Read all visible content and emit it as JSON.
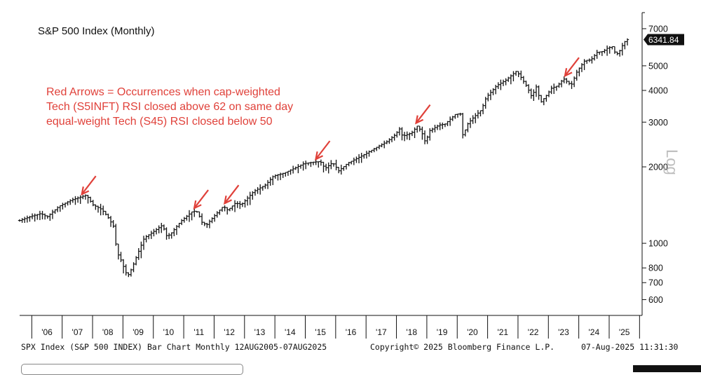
{
  "title": "S&P 500 Index (Monthly)",
  "annotation": [
    "Red Arrows = Occurrences when cap-weighted",
    "Tech (S5INFT) RSI closed above 62 on same day",
    "equal-weight Tech (S45) RSI closed below 50"
  ],
  "footer": {
    "left": "SPX Index (S&P 500 INDEX) Bar Chart  Monthly 12AUG2005-07AUG2025",
    "center": "Copyright© 2025 Bloomberg Finance L.P.",
    "right": "07-Aug-2025 11:31:30"
  },
  "colors": {
    "bars": "#111111",
    "arrows": "#e0413a",
    "annotation": "#e0413a",
    "last_price_tag": "#111111"
  },
  "chart_data": {
    "type": "bar",
    "subtype": "ohlc",
    "y_scale": "log",
    "y_scale_label": "Log",
    "ylim": [
      520,
      7600
    ],
    "y_ticks": [
      600,
      700,
      800,
      1000,
      2000,
      3000,
      4000,
      5000,
      7000
    ],
    "y_tick_labels": [
      "600",
      "700",
      "800",
      "1000",
      "2000",
      "3000",
      "4000",
      "5000",
      "7000"
    ],
    "x_range": [
      2005.6,
      2025.6
    ],
    "x_ticks": [
      "'06",
      "'07",
      "'08",
      "'09",
      "'10",
      "'11",
      "'12",
      "'13",
      "'14",
      "'15",
      "'16",
      "'17",
      "'18",
      "'19",
      "'20",
      "'21",
      "'22",
      "'23",
      "'24",
      "'25"
    ],
    "last_price": "6341.84",
    "grid": false,
    "series": [
      {
        "approx_monthly_close": [
          [
            2005.6,
            1230
          ],
          [
            2006.0,
            1280
          ],
          [
            2006.3,
            1310
          ],
          [
            2006.5,
            1270
          ],
          [
            2006.9,
            1400
          ],
          [
            2007.3,
            1480
          ],
          [
            2007.6,
            1520
          ],
          [
            2007.8,
            1550
          ],
          [
            2008.0,
            1420
          ],
          [
            2008.3,
            1360
          ],
          [
            2008.5,
            1270
          ],
          [
            2008.7,
            1160
          ],
          [
            2008.8,
            920
          ],
          [
            2008.9,
            880
          ],
          [
            2009.0,
            820
          ],
          [
            2009.15,
            740
          ],
          [
            2009.3,
            800
          ],
          [
            2009.5,
            920
          ],
          [
            2009.7,
            1050
          ],
          [
            2010.0,
            1110
          ],
          [
            2010.3,
            1180
          ],
          [
            2010.45,
            1060
          ],
          [
            2010.6,
            1100
          ],
          [
            2010.9,
            1220
          ],
          [
            2011.3,
            1340
          ],
          [
            2011.45,
            1330
          ],
          [
            2011.6,
            1210
          ],
          [
            2011.75,
            1180
          ],
          [
            2011.95,
            1260
          ],
          [
            2012.3,
            1400
          ],
          [
            2012.45,
            1350
          ],
          [
            2012.7,
            1440
          ],
          [
            2012.9,
            1420
          ],
          [
            2013.3,
            1600
          ],
          [
            2013.7,
            1700
          ],
          [
            2013.95,
            1840
          ],
          [
            2014.3,
            1890
          ],
          [
            2014.7,
            1990
          ],
          [
            2014.95,
            2060
          ],
          [
            2015.3,
            2090
          ],
          [
            2015.5,
            2100
          ],
          [
            2015.65,
            1970
          ],
          [
            2015.9,
            2080
          ],
          [
            2016.1,
            1930
          ],
          [
            2016.4,
            2070
          ],
          [
            2016.7,
            2160
          ],
          [
            2016.95,
            2240
          ],
          [
            2017.3,
            2370
          ],
          [
            2017.7,
            2520
          ],
          [
            2017.95,
            2670
          ],
          [
            2018.1,
            2820
          ],
          [
            2018.2,
            2640
          ],
          [
            2018.5,
            2720
          ],
          [
            2018.7,
            2910
          ],
          [
            2018.85,
            2700
          ],
          [
            2018.95,
            2500
          ],
          [
            2019.1,
            2780
          ],
          [
            2019.4,
            2920
          ],
          [
            2019.6,
            2950
          ],
          [
            2019.95,
            3230
          ],
          [
            2020.1,
            3230
          ],
          [
            2020.2,
            2580
          ],
          [
            2020.3,
            2910
          ],
          [
            2020.5,
            3100
          ],
          [
            2020.8,
            3360
          ],
          [
            2020.95,
            3750
          ],
          [
            2021.3,
            4180
          ],
          [
            2021.6,
            4390
          ],
          [
            2021.95,
            4770
          ],
          [
            2022.1,
            4500
          ],
          [
            2022.3,
            4130
          ],
          [
            2022.45,
            3780
          ],
          [
            2022.6,
            4130
          ],
          [
            2022.75,
            3590
          ],
          [
            2022.95,
            3840
          ],
          [
            2023.1,
            4080
          ],
          [
            2023.3,
            4170
          ],
          [
            2023.5,
            4450
          ],
          [
            2023.75,
            4190
          ],
          [
            2023.95,
            4770
          ],
          [
            2024.2,
            5250
          ],
          [
            2024.4,
            5270
          ],
          [
            2024.6,
            5650
          ],
          [
            2024.8,
            5700
          ],
          [
            2024.95,
            5880
          ],
          [
            2025.1,
            5950
          ],
          [
            2025.2,
            5610
          ],
          [
            2025.3,
            5570
          ],
          [
            2025.4,
            5910
          ],
          [
            2025.5,
            6200
          ],
          [
            2025.6,
            6340
          ]
        ]
      }
    ],
    "arrows_at": [
      [
        2007.6,
        1520
      ],
      [
        2011.3,
        1340
      ],
      [
        2012.3,
        1400
      ],
      [
        2015.3,
        2090
      ],
      [
        2018.6,
        2900
      ],
      [
        2023.5,
        4450
      ]
    ]
  }
}
